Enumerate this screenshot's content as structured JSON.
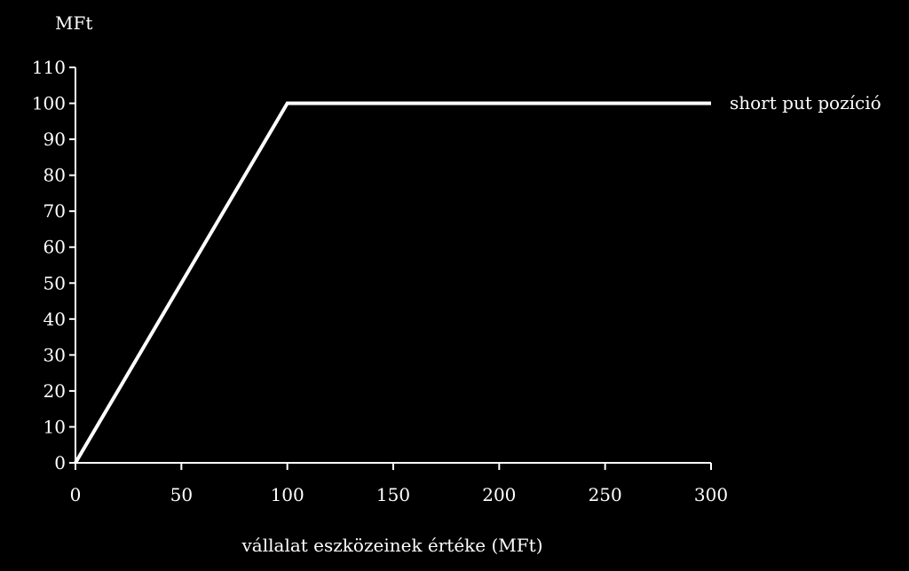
{
  "chart_data": {
    "type": "line",
    "title": "",
    "ylabel": "MFt",
    "xlabel": "vállalat eszközeinek értéke (MFt)",
    "xlim": [
      0,
      300
    ],
    "ylim": [
      0,
      110
    ],
    "x_ticks": [
      0,
      50,
      100,
      150,
      200,
      250,
      300
    ],
    "y_ticks": [
      0,
      10,
      20,
      30,
      40,
      50,
      60,
      70,
      80,
      90,
      100,
      110
    ],
    "grid": false,
    "colors": {
      "background": "#000000",
      "axis": "#ffffff",
      "series": "#ffffff",
      "text": "#ffffff"
    },
    "series": [
      {
        "name": "short put pozíció",
        "x": [
          0,
          100,
          300
        ],
        "y": [
          0,
          100,
          100
        ]
      }
    ]
  }
}
